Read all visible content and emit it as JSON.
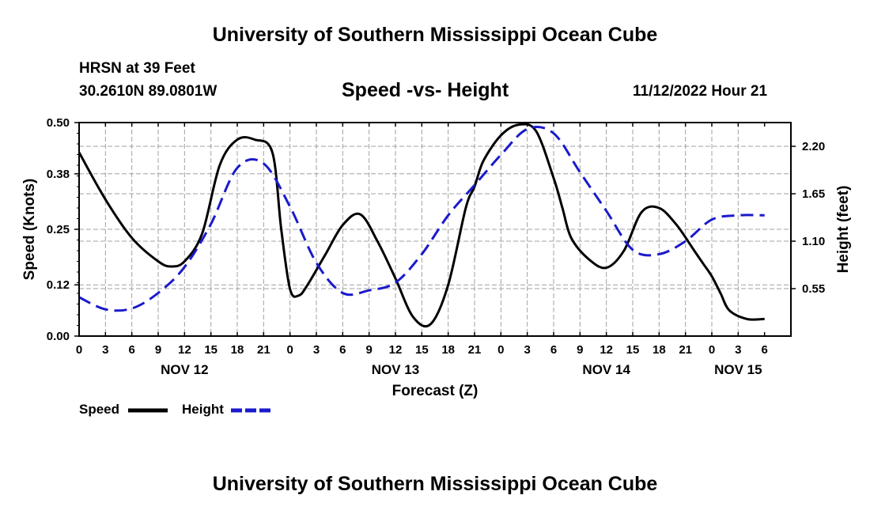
{
  "header": {
    "title": "University of Southern Mississippi Ocean Cube",
    "station": "HRSN at 39 Feet",
    "coords": "30.2610N  89.0801W",
    "chart_title": "Speed -vs- Height",
    "date": "11/12/2022 Hour 21"
  },
  "footer": {
    "title": "University of Southern Mississippi Ocean Cube"
  },
  "legend": {
    "speed_label": "Speed",
    "height_label": "Height"
  },
  "colors": {
    "speed": "#000000",
    "height": "#1a1acc"
  },
  "chart_data": {
    "type": "line",
    "title": "Speed -vs- Height",
    "xlabel": "Forecast (Z)",
    "ylabel": "Speed (Knots)",
    "y2label": "Height (feet)",
    "xlim": [
      0,
      81
    ],
    "ylim": [
      0,
      0.5
    ],
    "y2lim": [
      0.0,
      2.475
    ],
    "x_tick_labels": [
      "0",
      "3",
      "6",
      "9",
      "12",
      "15",
      "18",
      "21",
      "0",
      "3",
      "6",
      "9",
      "12",
      "15",
      "18",
      "21",
      "0",
      "3",
      "6",
      "9",
      "12",
      "15",
      "18",
      "21",
      "0",
      "3",
      "6"
    ],
    "y_ticks": [
      "0.00",
      "0.12",
      "0.25",
      "0.38",
      "0.50"
    ],
    "y2_ticks": [
      "0.55",
      "1.10",
      "1.65",
      "2.20"
    ],
    "y2_tick_values": [
      0.55,
      1.1,
      1.65,
      2.2
    ],
    "date_labels": [
      {
        "label": "NOV 12",
        "x": 12
      },
      {
        "label": "NOV 13",
        "x": 36
      },
      {
        "label": "NOV 14",
        "x": 60
      },
      {
        "label": "NOV 15",
        "x": 75
      }
    ],
    "grid": true,
    "series": [
      {
        "name": "Speed",
        "axis": "left",
        "style": "solid",
        "x": [
          0,
          3,
          6,
          9,
          10.5,
          12,
          14,
          16,
          18,
          20,
          22,
          23,
          24,
          25,
          26,
          28,
          30,
          32,
          34,
          36,
          38,
          40,
          42,
          44,
          45,
          46,
          48,
          50,
          52,
          54,
          55,
          56,
          58,
          60,
          62,
          64,
          66,
          68,
          70,
          71,
          72,
          73,
          74,
          76,
          78
        ],
        "values": [
          0.43,
          0.32,
          0.23,
          0.175,
          0.163,
          0.175,
          0.24,
          0.4,
          0.46,
          0.46,
          0.43,
          0.25,
          0.11,
          0.095,
          0.12,
          0.19,
          0.26,
          0.285,
          0.22,
          0.135,
          0.045,
          0.028,
          0.12,
          0.3,
          0.35,
          0.41,
          0.47,
          0.495,
          0.48,
          0.37,
          0.3,
          0.23,
          0.18,
          0.16,
          0.2,
          0.29,
          0.3,
          0.26,
          0.2,
          0.17,
          0.14,
          0.1,
          0.06,
          0.04,
          0.04
        ]
      },
      {
        "name": "Height",
        "axis": "right",
        "style": "dashed",
        "x": [
          0,
          3,
          6,
          9,
          12,
          15,
          18,
          21,
          24,
          27,
          30,
          33,
          36,
          39,
          42,
          45,
          48,
          51,
          54,
          57,
          60,
          63,
          66,
          69,
          72,
          75,
          78
        ],
        "values": [
          0.45,
          0.31,
          0.32,
          0.5,
          0.8,
          1.3,
          1.95,
          2.0,
          1.5,
          0.85,
          0.5,
          0.53,
          0.62,
          0.95,
          1.4,
          1.75,
          2.1,
          2.4,
          2.35,
          1.9,
          1.45,
          1.0,
          0.95,
          1.1,
          1.35,
          1.4,
          1.4
        ]
      }
    ]
  }
}
